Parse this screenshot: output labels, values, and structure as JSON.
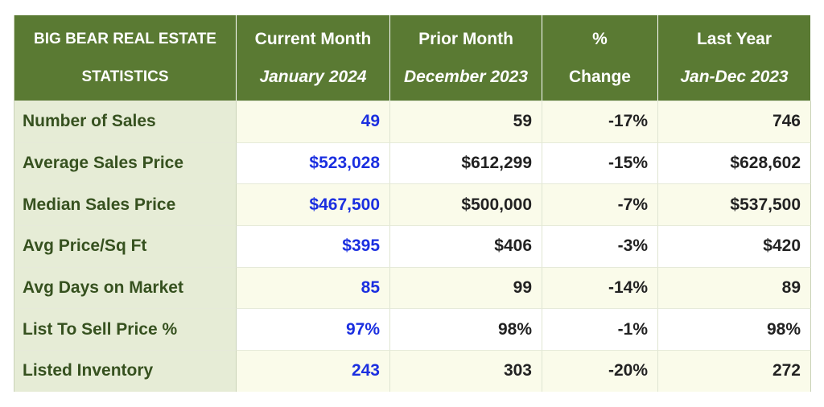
{
  "header": {
    "col0": [
      "BIG BEAR REAL ESTATE",
      "STATISTICS"
    ],
    "col1": [
      "Current Month",
      "January 2024"
    ],
    "col2": [
      "Prior Month",
      "December 2023"
    ],
    "col3": [
      "%",
      "Change"
    ],
    "col4": [
      "Last Year",
      "Jan-Dec 2023"
    ]
  },
  "rows": [
    {
      "label": "Number of Sales",
      "current": "49",
      "prior": "59",
      "change": "-17%",
      "last_year": "746"
    },
    {
      "label": "Average Sales Price",
      "current": "$523,028",
      "prior": "$612,299",
      "change": "-15%",
      "last_year": "$628,602"
    },
    {
      "label": "Median Sales Price",
      "current": "$467,500",
      "prior": "$500,000",
      "change": "-7%",
      "last_year": "$537,500"
    },
    {
      "label": "Avg Price/Sq Ft",
      "current": "$395",
      "prior": "$406",
      "change": "-3%",
      "last_year": "$420"
    },
    {
      "label": "Avg Days on Market",
      "current": "85",
      "prior": "99",
      "change": "-14%",
      "last_year": "89"
    },
    {
      "label": "List To Sell Price %",
      "current": "97%",
      "prior": "98%",
      "change": "-1%",
      "last_year": "98%"
    },
    {
      "label": "Listed Inventory",
      "current": "243",
      "prior": "303",
      "change": "-20%",
      "last_year": "272"
    }
  ],
  "colors": {
    "header_bg": "#5a7a33",
    "label_bg": "#e6ecd6",
    "current_month_text": "#1b2fe0"
  }
}
